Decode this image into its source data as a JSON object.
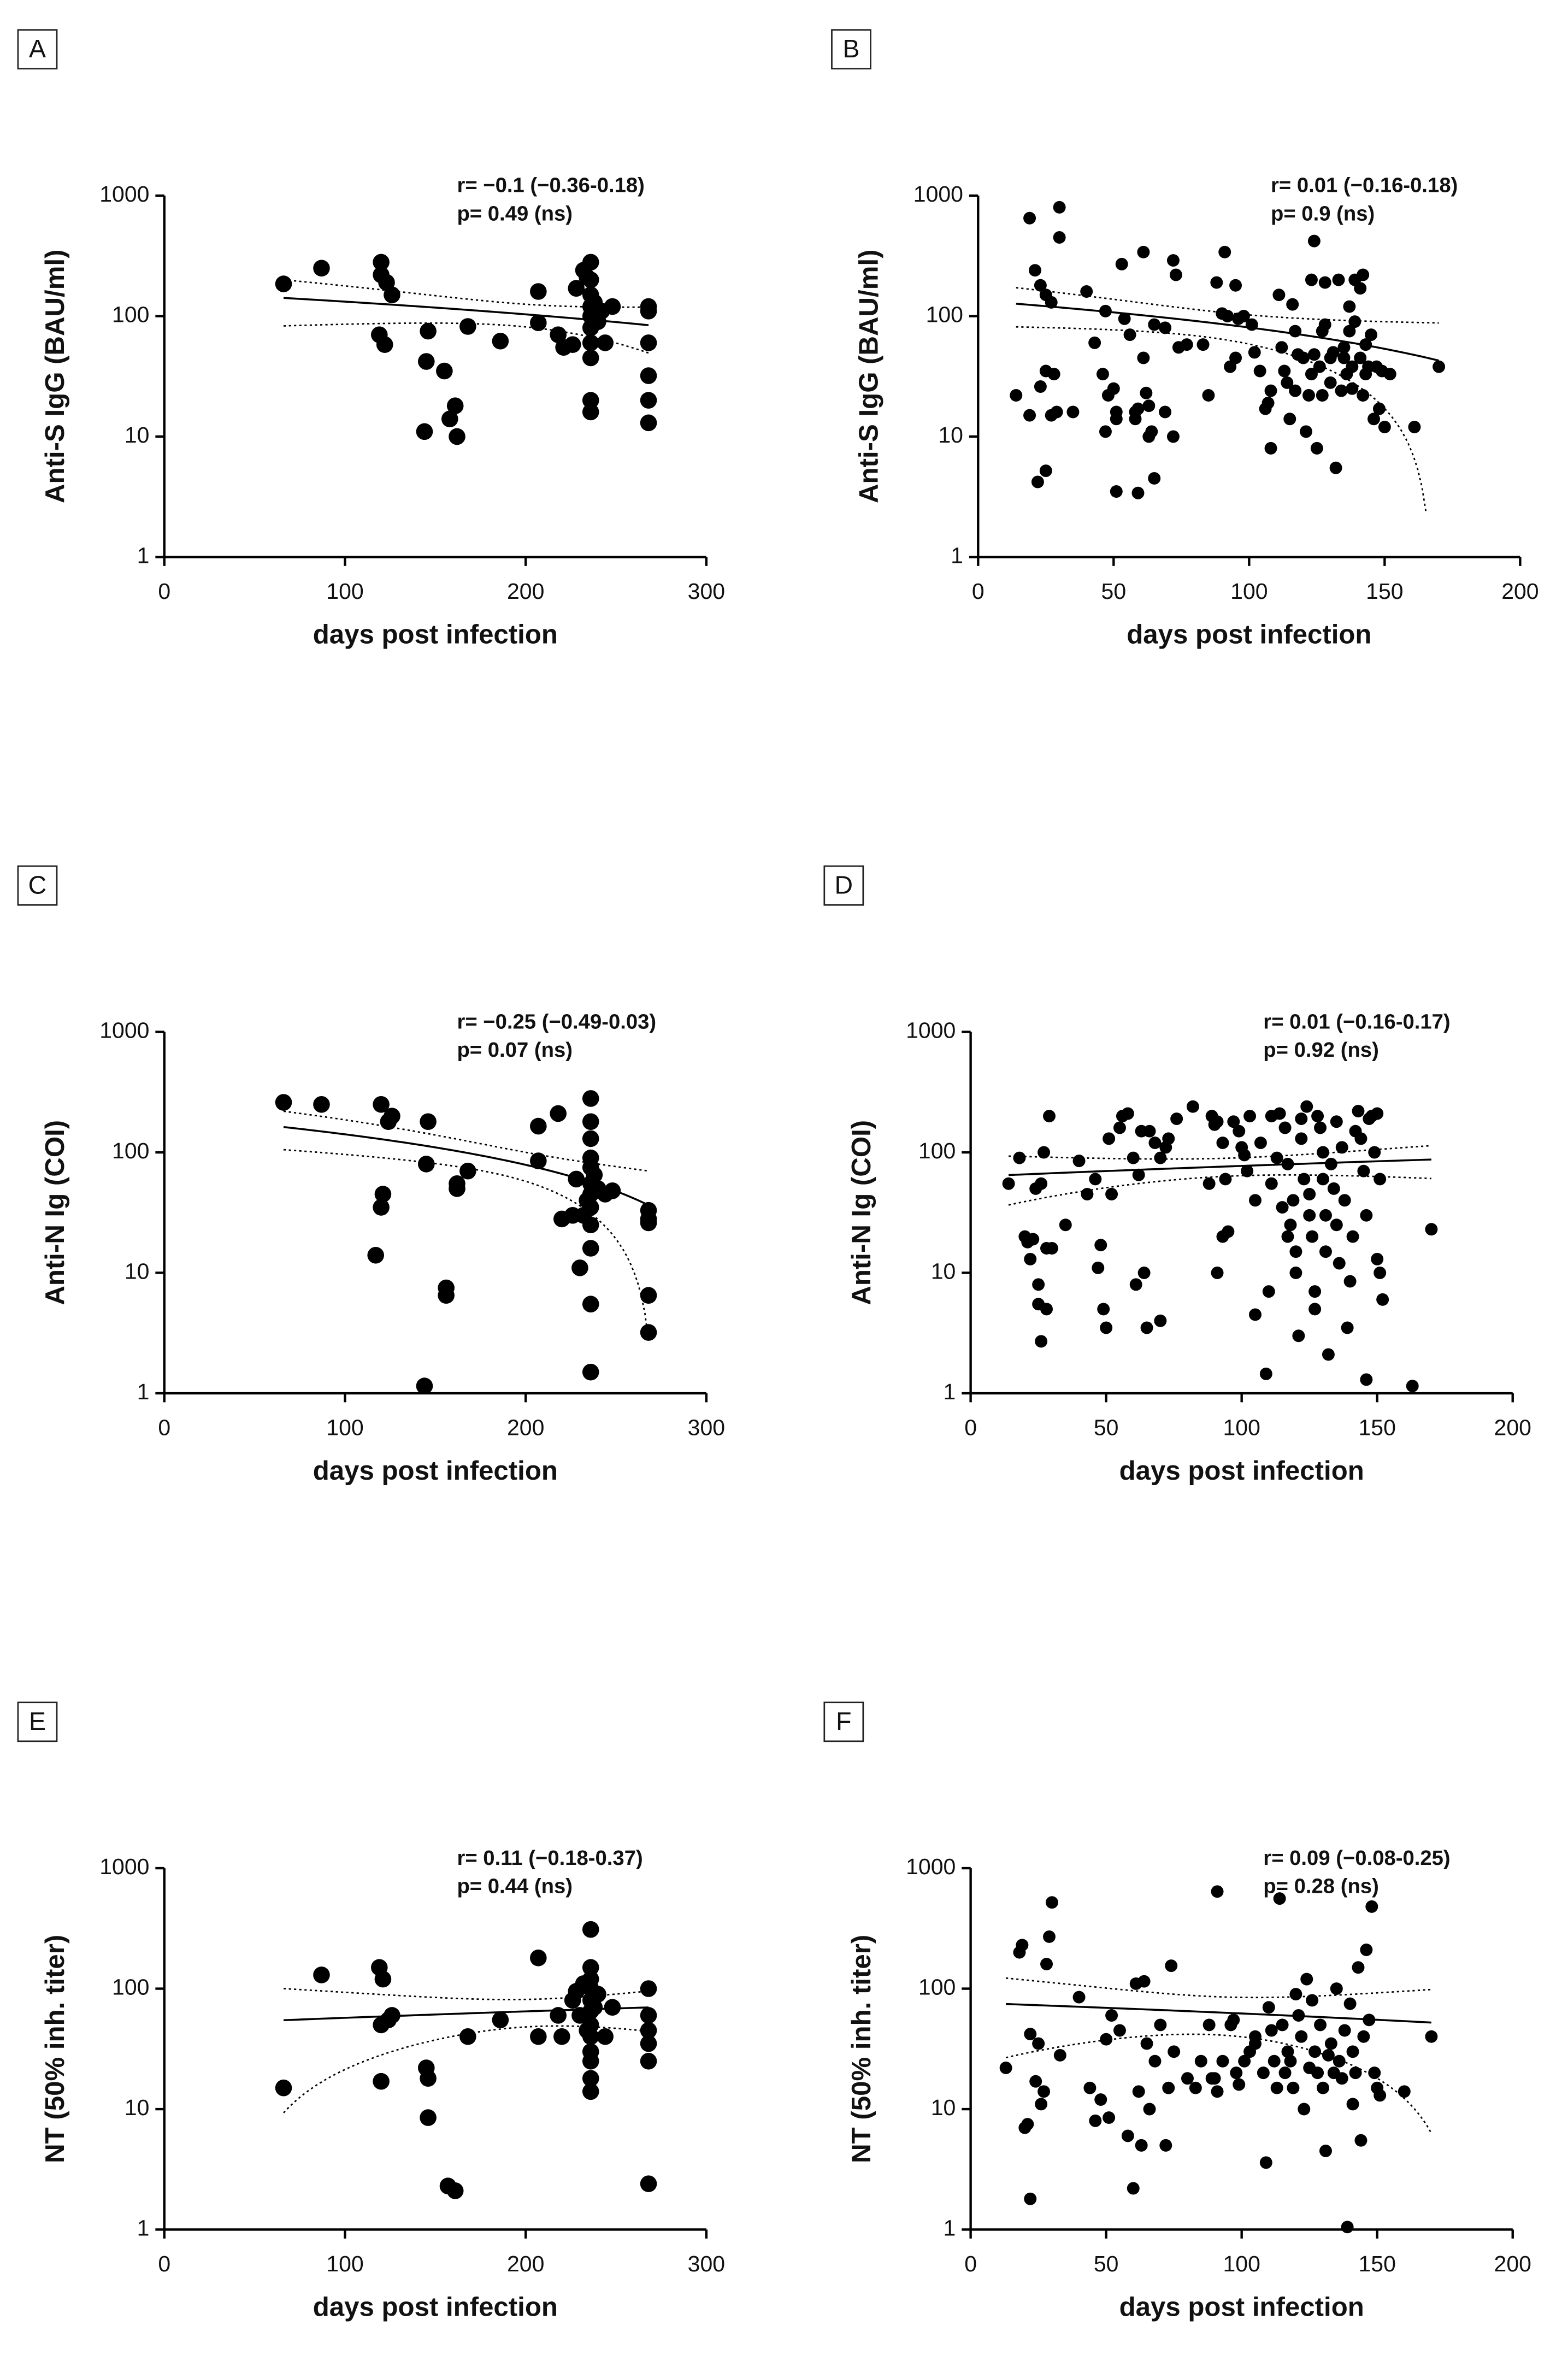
{
  "chart_data": [
    {
      "type": "scatter",
      "panel": "A",
      "ylabel": "Anti-S IgG (BAU/ml)",
      "xlabel": "days post infection",
      "annotations": [
        "r= −0.1 (−0.36-0.18)",
        "p= 0.49 (ns)"
      ],
      "color": "#000000",
      "y_scale": "log",
      "fit_line": true,
      "xlim": [
        0,
        300
      ],
      "xticks": [
        0,
        100,
        200,
        300
      ],
      "ylim": [
        1,
        1000
      ],
      "yticks": [
        1,
        10,
        100,
        1000
      ],
      "x": [
        66,
        87,
        120,
        120,
        123,
        126,
        119,
        122,
        146,
        145,
        144,
        155,
        158,
        161,
        162,
        168,
        186,
        207,
        207,
        218,
        221,
        226,
        228,
        232,
        234,
        236,
        236,
        236,
        236,
        236,
        236,
        236,
        236,
        236,
        236,
        238,
        240,
        242,
        244,
        248,
        268,
        268,
        268,
        268,
        268,
        268
      ],
      "y": [
        185,
        250,
        280,
        220,
        190,
        150,
        70,
        58,
        75,
        42,
        11,
        35,
        14,
        18,
        10,
        82,
        62,
        160,
        88,
        70,
        55,
        58,
        170,
        240,
        210,
        280,
        200,
        150,
        120,
        100,
        80,
        60,
        45,
        20,
        16,
        130,
        90,
        110,
        60,
        120,
        120,
        110,
        60,
        32,
        20,
        13
      ]
    },
    {
      "type": "scatter",
      "panel": "B",
      "ylabel": "Anti-S IgG (BAU/ml)",
      "xlabel": "days post infection",
      "annotations": [
        "r= 0.01 (−0.16-0.18)",
        "p= 0.9 (ns)"
      ],
      "color": "#000000",
      "y_scale": "log",
      "fit_line": true,
      "xlim": [
        0,
        200
      ],
      "xticks": [
        0,
        50,
        100,
        150,
        200
      ],
      "ylim": [
        1,
        1000
      ],
      "yticks": [
        1,
        10,
        100,
        1000
      ],
      "x": [
        19,
        30,
        30,
        14,
        19,
        21,
        23,
        25,
        27,
        22,
        23,
        25,
        27,
        25,
        28,
        29,
        35,
        40,
        43,
        47,
        46,
        47,
        48,
        50,
        51,
        51,
        51,
        53,
        54,
        56,
        58,
        58,
        59,
        59,
        61,
        61,
        62,
        63,
        63,
        64,
        65,
        65,
        69,
        69,
        72,
        73,
        72,
        74,
        77,
        83,
        85,
        88,
        90,
        91,
        92,
        93,
        95,
        95,
        96,
        98,
        101,
        102,
        104,
        106,
        107,
        108,
        108,
        111,
        112,
        113,
        114,
        115,
        116,
        117,
        117,
        118,
        120,
        121,
        122,
        123,
        123,
        124,
        124,
        125,
        126,
        127,
        127,
        128,
        128,
        130,
        130,
        131,
        132,
        133,
        134,
        135,
        135,
        136,
        137,
        137,
        138,
        138,
        139,
        139,
        141,
        141,
        142,
        142,
        143,
        143,
        144,
        145,
        146,
        147,
        148,
        149,
        150,
        152,
        161,
        170
      ],
      "y": [
        650,
        800,
        450,
        22,
        15,
        240,
        180,
        150,
        130,
        4.2,
        26,
        35,
        15,
        5.2,
        33,
        16,
        16,
        160,
        60,
        110,
        33,
        11,
        22,
        25,
        16,
        14,
        3.5,
        270,
        95,
        70,
        16,
        14,
        3.4,
        17,
        340,
        45,
        23,
        18,
        10,
        11,
        85,
        4.5,
        16,
        80,
        290,
        220,
        10,
        55,
        58,
        58,
        22,
        190,
        105,
        340,
        100,
        38,
        45,
        180,
        95,
        100,
        85,
        50,
        35,
        17,
        19,
        24,
        8,
        150,
        55,
        35,
        28,
        14,
        125,
        75,
        24,
        48,
        45,
        11,
        22,
        33,
        200,
        420,
        48,
        8,
        38,
        75,
        22,
        85,
        190,
        45,
        28,
        50,
        5.5,
        200,
        24,
        55,
        45,
        33,
        75,
        120,
        38,
        25,
        90,
        200,
        45,
        170,
        22,
        220,
        33,
        58,
        38,
        70,
        14,
        38,
        17,
        35,
        12,
        33,
        12,
        38
      ]
    },
    {
      "type": "scatter",
      "panel": "C",
      "ylabel": "Anti-N Ig (COI)",
      "xlabel": "days post infection",
      "annotations": [
        "r= −0.25 (−0.49-0.03)",
        "p= 0.07 (ns)"
      ],
      "color": "#000000",
      "y_scale": "log",
      "fit_line": true,
      "xlim": [
        0,
        300
      ],
      "xticks": [
        0,
        100,
        200,
        300
      ],
      "ylim": [
        1,
        1000
      ],
      "yticks": [
        1,
        10,
        100,
        1000
      ],
      "x": [
        66,
        87,
        120,
        124,
        126,
        146,
        145,
        120,
        121,
        117,
        144,
        156,
        156,
        162,
        162,
        168,
        207,
        207,
        218,
        220,
        226,
        228,
        230,
        232,
        234,
        236,
        236,
        236,
        236,
        236,
        236,
        236,
        236,
        236,
        236,
        236,
        236,
        238,
        240,
        244,
        248,
        268,
        268,
        268,
        268,
        268
      ],
      "y": [
        260,
        250,
        250,
        180,
        200,
        180,
        80,
        35,
        45,
        14,
        1.15,
        7.5,
        6.5,
        55,
        50,
        70,
        165,
        85,
        210,
        28,
        30,
        60,
        11,
        30,
        40,
        280,
        180,
        130,
        90,
        75,
        55,
        45,
        35,
        25,
        16,
        5.5,
        1.5,
        65,
        50,
        45,
        48,
        33,
        28,
        26,
        6.5,
        3.2
      ]
    },
    {
      "type": "scatter",
      "panel": "D",
      "ylabel": "Anti-N Ig (COI)",
      "xlabel": "days post infection",
      "annotations": [
        "r= 0.01 (−0.16-0.17)",
        "p= 0.92 (ns)"
      ],
      "color": "#000000",
      "y_scale": "log",
      "fit_line": true,
      "xlim": [
        0,
        200
      ],
      "xticks": [
        0,
        50,
        100,
        150,
        200
      ],
      "ylim": [
        1,
        1000
      ],
      "yticks": [
        1,
        10,
        100,
        1000
      ],
      "x": [
        14,
        18,
        20,
        21,
        22,
        23,
        24,
        25,
        25,
        26,
        26,
        27,
        28,
        28,
        29,
        30,
        35,
        40,
        43,
        46,
        47,
        48,
        49,
        50,
        51,
        52,
        55,
        56,
        58,
        60,
        61,
        62,
        63,
        64,
        65,
        66,
        68,
        70,
        70,
        72,
        73,
        76,
        82,
        88,
        89,
        90,
        91,
        91,
        93,
        93,
        94,
        95,
        97,
        99,
        100,
        101,
        102,
        103,
        105,
        105,
        107,
        109,
        110,
        111,
        111,
        113,
        114,
        115,
        116,
        117,
        117,
        118,
        119,
        120,
        120,
        121,
        122,
        122,
        123,
        124,
        125,
        125,
        126,
        127,
        127,
        128,
        129,
        130,
        130,
        131,
        131,
        132,
        133,
        134,
        135,
        135,
        136,
        137,
        138,
        139,
        140,
        141,
        142,
        143,
        144,
        145,
        146,
        146,
        147,
        148,
        149,
        150,
        150,
        151,
        151,
        152,
        163,
        170
      ],
      "y": [
        55,
        90,
        20,
        18,
        13,
        19,
        50,
        5.5,
        8,
        55,
        2.7,
        100,
        5,
        16,
        200,
        16,
        25,
        85,
        45,
        60,
        11,
        17,
        5,
        3.5,
        130,
        45,
        160,
        200,
        210,
        90,
        8,
        65,
        150,
        10,
        3.5,
        150,
        120,
        90,
        4,
        110,
        130,
        190,
        240,
        55,
        200,
        170,
        10,
        180,
        20,
        120,
        60,
        22,
        180,
        150,
        110,
        95,
        70,
        200,
        40,
        4.5,
        120,
        1.45,
        7,
        55,
        200,
        90,
        210,
        35,
        160,
        80,
        20,
        25,
        40,
        15,
        10,
        3,
        190,
        130,
        60,
        240,
        45,
        30,
        20,
        7,
        5,
        200,
        160,
        100,
        60,
        30,
        15,
        2.1,
        80,
        50,
        180,
        25,
        12,
        110,
        40,
        3.5,
        8.5,
        20,
        150,
        220,
        130,
        70,
        30,
        1.3,
        190,
        200,
        100,
        210,
        13,
        60,
        10,
        6,
        1.15,
        23
      ]
    },
    {
      "type": "scatter",
      "panel": "E",
      "ylabel": "NT (50% inh. titer)",
      "xlabel": "days post infection",
      "annotations": [
        "r= 0.11 (−0.18-0.37)",
        "p= 0.44 (ns)"
      ],
      "color": "#000000",
      "y_scale": "log",
      "fit_line": true,
      "xlim": [
        0,
        300
      ],
      "xticks": [
        0,
        100,
        200,
        300
      ],
      "ylim": [
        1,
        1000
      ],
      "yticks": [
        1,
        10,
        100,
        1000
      ],
      "x": [
        66,
        87,
        119,
        120,
        121,
        124,
        126,
        120,
        145,
        146,
        146,
        157,
        161,
        168,
        186,
        207,
        207,
        218,
        220,
        226,
        228,
        230,
        232,
        234,
        236,
        236,
        236,
        236,
        236,
        236,
        236,
        236,
        236,
        236,
        236,
        236,
        238,
        240,
        244,
        248,
        268,
        268,
        268,
        268,
        268,
        268
      ],
      "y": [
        15,
        130,
        150,
        50,
        120,
        55,
        60,
        17,
        22,
        18,
        8.5,
        2.3,
        2.1,
        40,
        55,
        180,
        40,
        60,
        40,
        80,
        95,
        60,
        110,
        45,
        310,
        150,
        120,
        100,
        80,
        65,
        50,
        40,
        30,
        25,
        18,
        14,
        70,
        90,
        40,
        70,
        100,
        60,
        45,
        35,
        25,
        2.4
      ]
    },
    {
      "type": "scatter",
      "panel": "F",
      "ylabel": "NT (50% inh. titer)",
      "xlabel": "days post infection",
      "annotations": [
        "r= 0.09 (−0.08-0.25)",
        "p= 0.28 (ns)"
      ],
      "color": "#000000",
      "y_scale": "log",
      "fit_line": true,
      "xlim": [
        0,
        200
      ],
      "xticks": [
        0,
        50,
        100,
        150,
        200
      ],
      "ylim": [
        1,
        1000
      ],
      "yticks": [
        1,
        10,
        100,
        1000
      ],
      "x": [
        13,
        18,
        19,
        20,
        21,
        22,
        22,
        24,
        25,
        26,
        27,
        29,
        28,
        30,
        33,
        40,
        44,
        46,
        48,
        50,
        51,
        52,
        55,
        58,
        60,
        61,
        62,
        63,
        64,
        65,
        66,
        68,
        70,
        72,
        73,
        74,
        75,
        80,
        83,
        85,
        88,
        89,
        90,
        91,
        91,
        93,
        96,
        97,
        98,
        99,
        101,
        103,
        105,
        105,
        108,
        109,
        110,
        111,
        112,
        113,
        114,
        115,
        116,
        117,
        118,
        119,
        120,
        121,
        122,
        123,
        124,
        125,
        126,
        127,
        128,
        129,
        130,
        131,
        132,
        133,
        134,
        135,
        136,
        137,
        138,
        139,
        140,
        141,
        141,
        142,
        143,
        144,
        145,
        146,
        147,
        148,
        149,
        150,
        151,
        160,
        170
      ],
      "y": [
        22,
        200,
        230,
        7,
        7.5,
        42,
        1.8,
        17,
        35,
        11,
        14,
        270,
        160,
        520,
        28,
        85,
        15,
        8,
        12,
        38,
        8.5,
        60,
        45,
        6,
        2.2,
        110,
        14,
        5,
        115,
        35,
        10,
        25,
        50,
        5,
        15,
        155,
        30,
        18,
        15,
        25,
        50,
        18,
        18,
        14,
        640,
        25,
        50,
        55,
        20,
        16,
        25,
        30,
        35,
        40,
        20,
        3.6,
        70,
        45,
        25,
        15,
        560,
        50,
        20,
        30,
        25,
        15,
        90,
        60,
        40,
        10,
        120,
        22,
        80,
        30,
        20,
        50,
        15,
        4.5,
        28,
        35,
        20,
        100,
        25,
        18,
        45,
        1.05,
        75,
        30,
        11,
        20,
        150,
        5.5,
        40,
        210,
        55,
        480,
        20,
        15,
        13,
        14,
        40
      ]
    }
  ]
}
